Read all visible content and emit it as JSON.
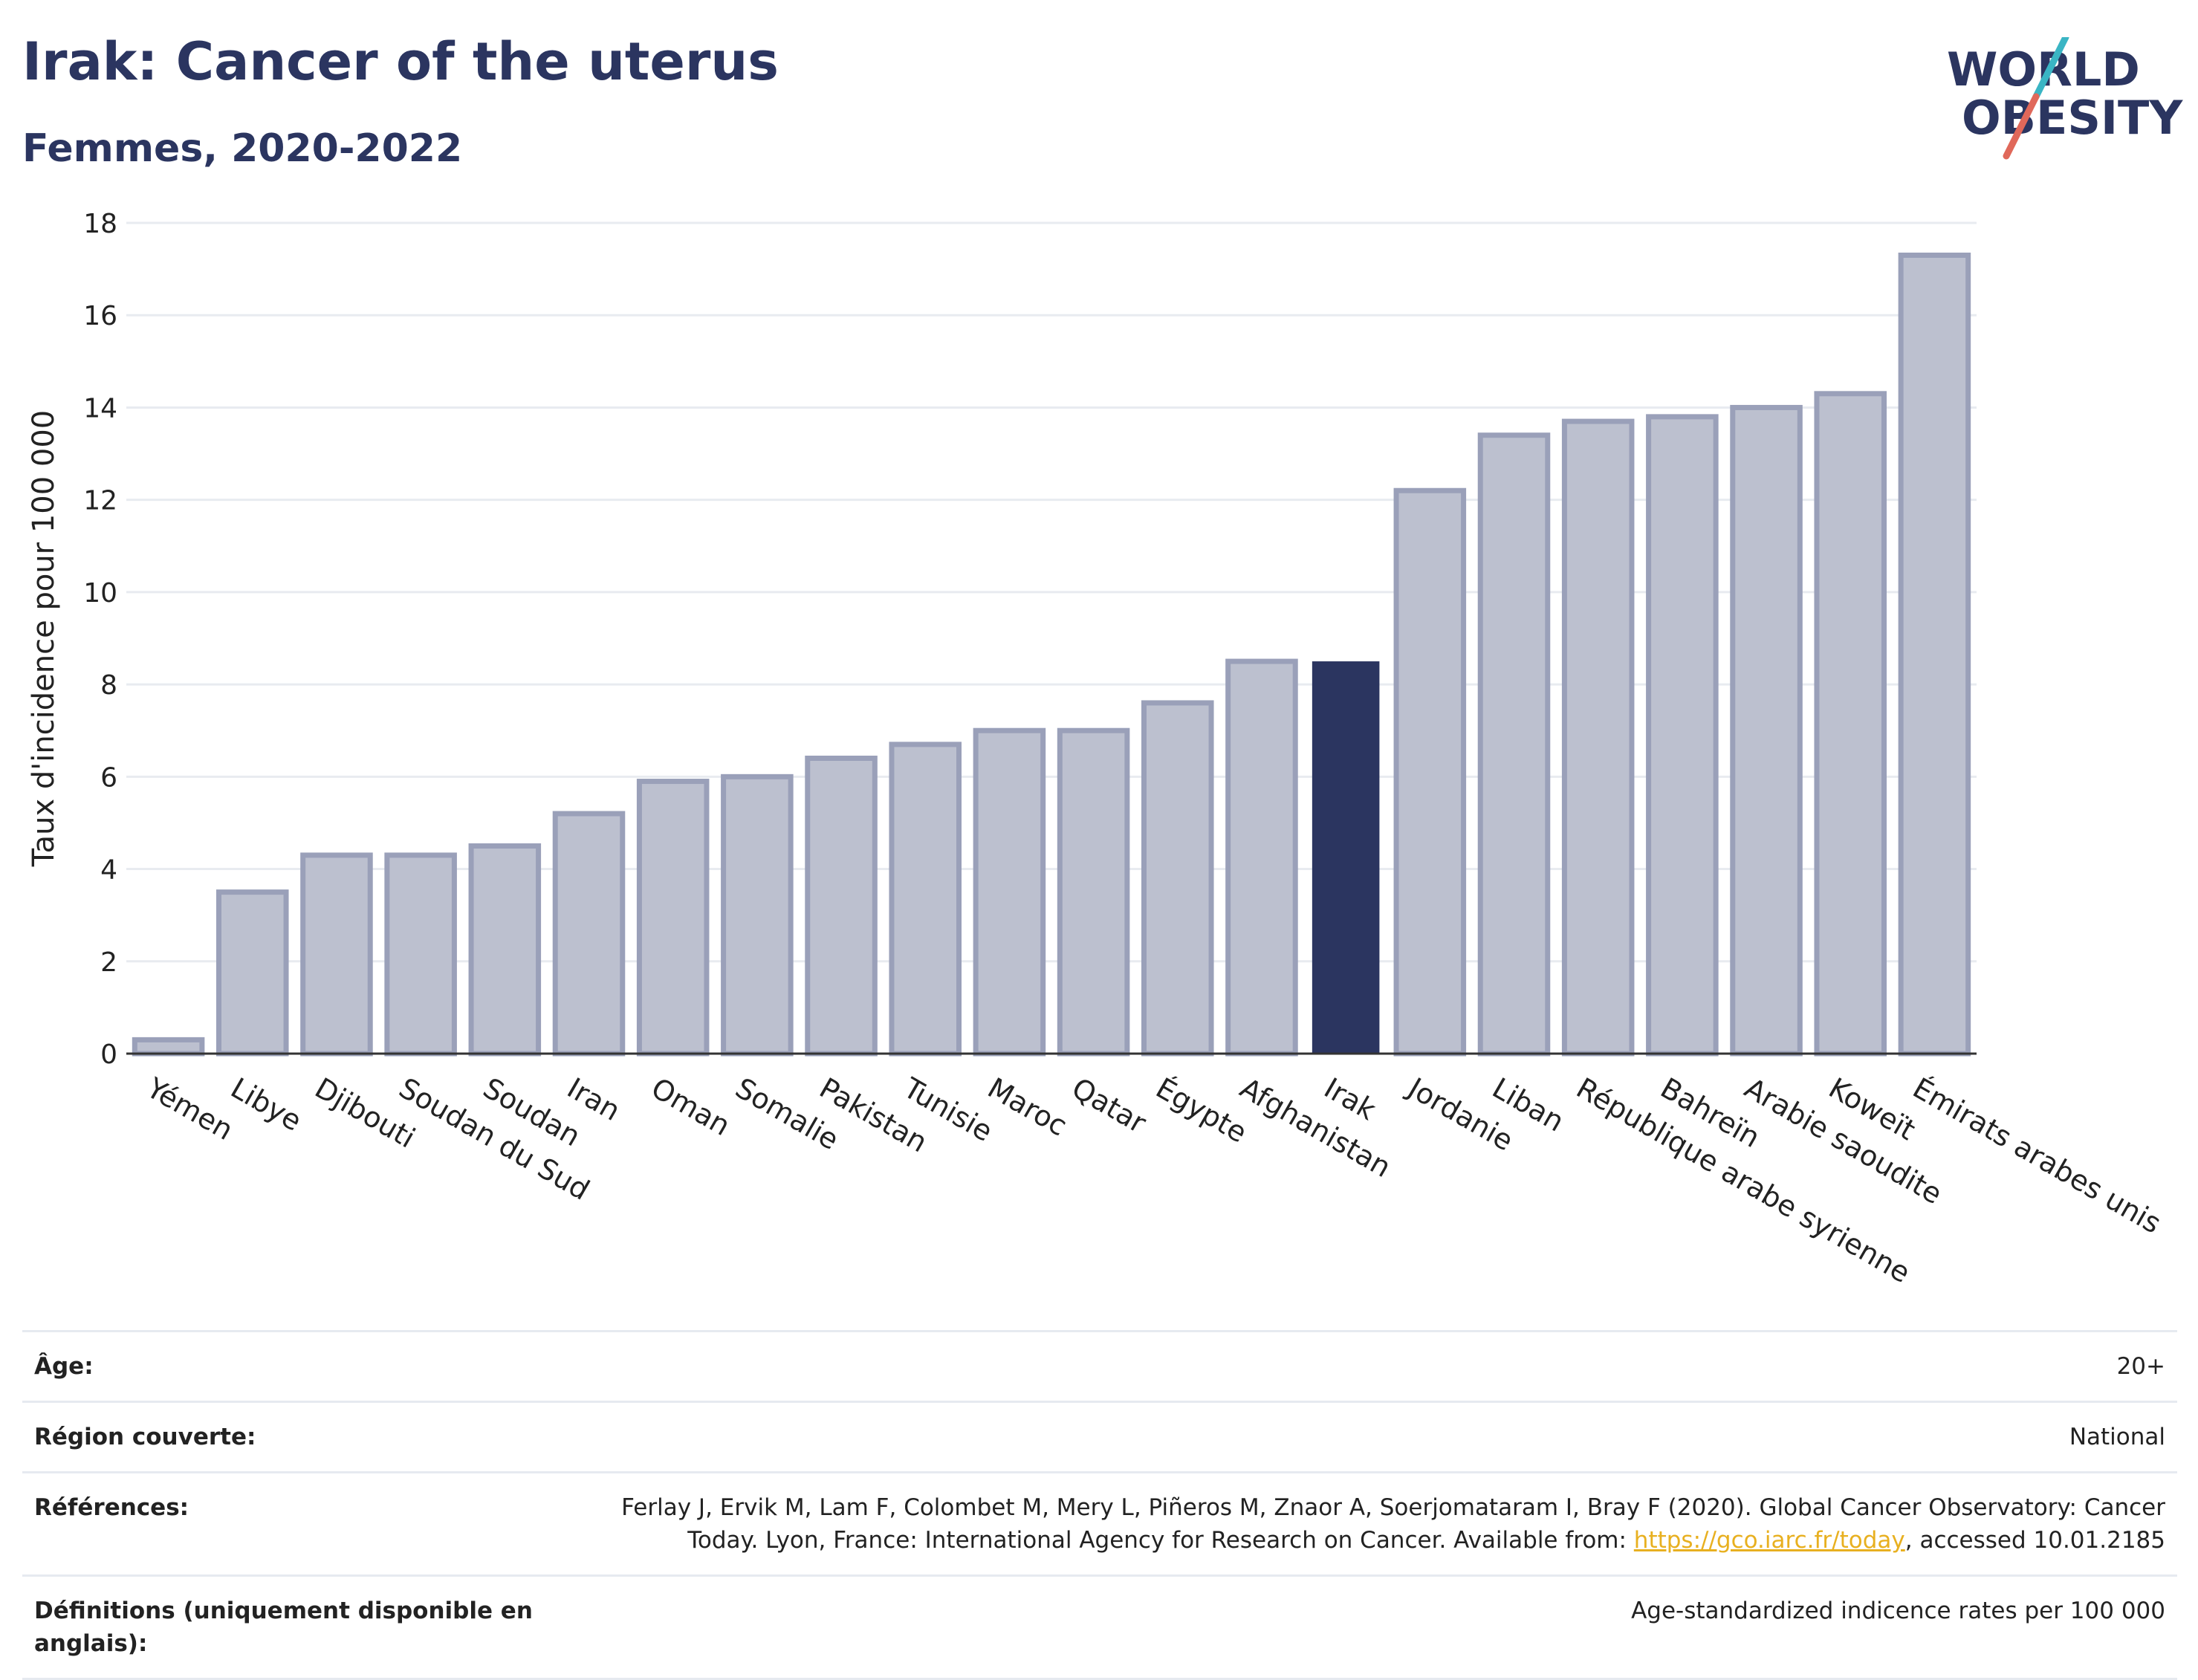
{
  "header": {
    "title": "Irak: Cancer of the uterus",
    "subtitle": "Femmes, 2020-2022"
  },
  "logo": {
    "line1": "WORLD",
    "line2": "OBESITY",
    "accent_colors": [
      "#3ab5c4",
      "#e0685a"
    ],
    "text_color": "#2b3560"
  },
  "colors": {
    "bar": "#bcc0cf",
    "bar_border": "#9aa0b9",
    "highlight": "#2b3560",
    "grid": "#e8ebf0",
    "axis": "#333333"
  },
  "chart_data": {
    "type": "bar",
    "title": "Irak: Cancer of the uterus",
    "subtitle": "Femmes, 2020-2022",
    "xlabel": "",
    "ylabel": "Taux d'incidence pour 100 000",
    "ylim": [
      0,
      18
    ],
    "yticks": [
      0,
      2,
      4,
      6,
      8,
      10,
      12,
      14,
      16,
      18
    ],
    "grid": true,
    "highlight": "Irak",
    "categories": [
      "Yémen",
      "Libye",
      "Djibouti",
      "Soudan du Sud",
      "Soudan",
      "Iran",
      "Oman",
      "Somalie",
      "Pakistan",
      "Tunisie",
      "Maroc",
      "Qatar",
      "Égypte",
      "Afghanistan",
      "Irak",
      "Jordanie",
      "Liban",
      "République arabe syrienne",
      "Bahreïn",
      "Arabie saoudite",
      "Koweït",
      "Émirats arabes unis"
    ],
    "values": [
      0.3,
      3.5,
      4.3,
      4.3,
      4.5,
      5.2,
      5.9,
      6.0,
      6.4,
      6.7,
      7.0,
      7.0,
      7.6,
      8.5,
      8.5,
      12.2,
      13.4,
      13.7,
      13.8,
      14.0,
      14.3,
      17.3
    ]
  },
  "meta": {
    "rows": [
      {
        "label": "Âge:",
        "value": "20+"
      },
      {
        "label": "Région couverte:",
        "value": "National"
      },
      {
        "label": "Références:",
        "value_pre": "Ferlay J, Ervik M, Lam F, Colombet M, Mery L, Piñeros M, Znaor A, Soerjomataram I, Bray F (2020). Global Cancer Observatory: Cancer Today. Lyon, France: International Agency for Research on Cancer. Available from: ",
        "link": "https://gco.iarc.fr/today",
        "value_post": ", accessed 10.01.2185"
      },
      {
        "label": "Définitions (uniquement disponible en anglais):",
        "value": "Age-standardized indicence rates per 100 000"
      }
    ]
  }
}
